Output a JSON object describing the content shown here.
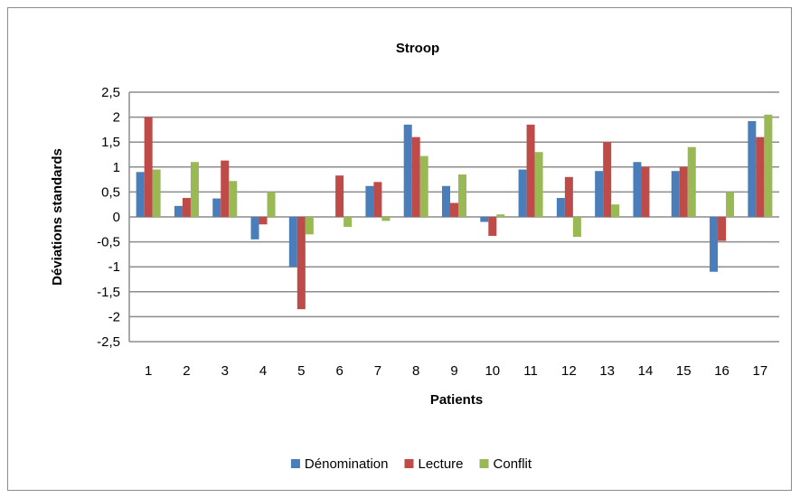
{
  "chart_data": {
    "type": "bar",
    "title": "Stroop",
    "xlabel": "Patients",
    "ylabel": "Déviations standards",
    "ylim": [
      -2.5,
      2.5
    ],
    "ytick_values": [
      2.5,
      2,
      1.5,
      1,
      0.5,
      0,
      -0.5,
      -1,
      -1.5,
      -2,
      -2.5
    ],
    "ytick_labels": [
      "2,5",
      "2",
      "1,5",
      "1",
      "0,5",
      "0",
      "-0,5",
      "-1",
      "-1,5",
      "-2",
      "-2,5"
    ],
    "grid": true,
    "legend_position": "bottom",
    "categories": [
      "1",
      "2",
      "3",
      "4",
      "5",
      "6",
      "7",
      "8",
      "9",
      "10",
      "11",
      "12",
      "13",
      "14",
      "15",
      "16",
      "17"
    ],
    "series": [
      {
        "name": "Dénomination",
        "color": "#4a7ebb",
        "values": [
          0.9,
          0.22,
          0.37,
          -0.45,
          -1.0,
          0.0,
          0.62,
          1.85,
          0.62,
          -0.1,
          0.95,
          0.38,
          0.92,
          1.1,
          0.92,
          -1.1,
          1.92
        ]
      },
      {
        "name": "Lecture",
        "color": "#be4b48",
        "values": [
          2.0,
          0.38,
          1.13,
          -0.15,
          -1.85,
          0.83,
          0.7,
          1.6,
          0.28,
          -0.38,
          1.85,
          0.8,
          1.5,
          1.0,
          1.0,
          -0.48,
          1.6
        ]
      },
      {
        "name": "Conflit",
        "color": "#98b954",
        "values": [
          0.95,
          1.1,
          0.72,
          0.5,
          -0.35,
          -0.2,
          -0.08,
          1.22,
          0.85,
          0.05,
          1.3,
          -0.4,
          0.25,
          0.0,
          1.4,
          0.5,
          2.05
        ]
      }
    ]
  }
}
